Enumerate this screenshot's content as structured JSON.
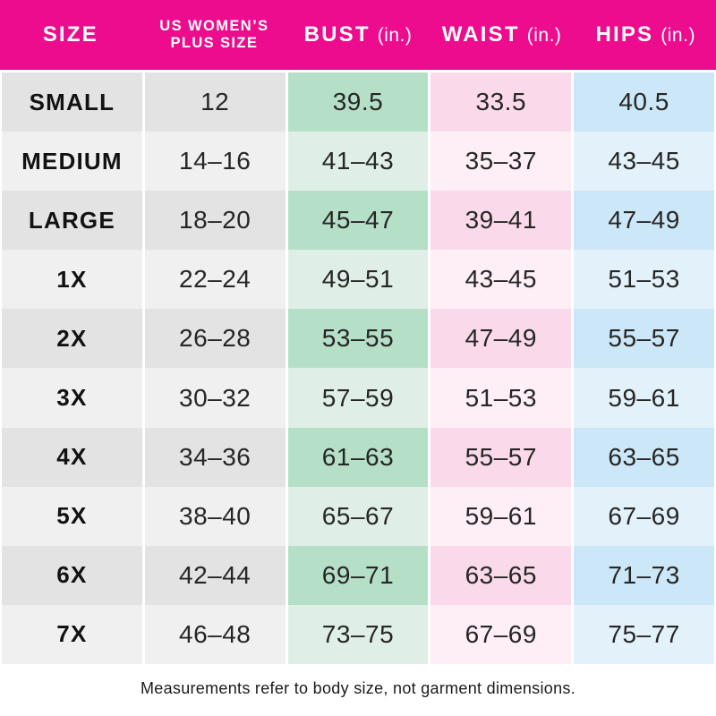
{
  "colors": {
    "header-bg": "#EC0C8D",
    "header-text": "#FFFFFF",
    "gray-dark": "#E3E3E4",
    "gray-light": "#F0F0F1",
    "mint-dark": "#B5DFC6",
    "mint-light": "#DFEFE7",
    "pink-dark": "#FADAEA",
    "pink-light": "#FDEFF5",
    "blue-dark": "#CCE7F7",
    "blue-light": "#E3F1FB"
  },
  "header": {
    "columns": [
      {
        "label": "SIZE",
        "unit": ""
      },
      {
        "label": "US WOMEN’S\nPLUS SIZE",
        "unit": ""
      },
      {
        "label": "BUST",
        "unit": "(in.)"
      },
      {
        "label": "WAIST",
        "unit": "(in.)"
      },
      {
        "label": "HIPS",
        "unit": "(in.)"
      }
    ]
  },
  "rows": [
    {
      "size": "SMALL",
      "plus": "12",
      "bust": "39.5",
      "waist": "33.5",
      "hips": "40.5"
    },
    {
      "size": "MEDIUM",
      "plus": "14–16",
      "bust": "41–43",
      "waist": "35–37",
      "hips": "43–45"
    },
    {
      "size": "LARGE",
      "plus": "18–20",
      "bust": "45–47",
      "waist": "39–41",
      "hips": "47–49"
    },
    {
      "size": "1X",
      "plus": "22–24",
      "bust": "49–51",
      "waist": "43–45",
      "hips": "51–53"
    },
    {
      "size": "2X",
      "plus": "26–28",
      "bust": "53–55",
      "waist": "47–49",
      "hips": "55–57"
    },
    {
      "size": "3X",
      "plus": "30–32",
      "bust": "57–59",
      "waist": "51–53",
      "hips": "59–61"
    },
    {
      "size": "4X",
      "plus": "34–36",
      "bust": "61–63",
      "waist": "55–57",
      "hips": "63–65"
    },
    {
      "size": "5X",
      "plus": "38–40",
      "bust": "65–67",
      "waist": "59–61",
      "hips": "67–69"
    },
    {
      "size": "6X",
      "plus": "42–44",
      "bust": "69–71",
      "waist": "63–65",
      "hips": "71–73"
    },
    {
      "size": "7X",
      "plus": "46–48",
      "bust": "73–75",
      "waist": "67–69",
      "hips": "75–77"
    }
  ],
  "footer": {
    "note": "Measurements refer to body size, not garment dimensions."
  },
  "chart_data": {
    "type": "table",
    "title": "Women's plus size chart",
    "columns": [
      "SIZE",
      "US WOMEN’S PLUS SIZE",
      "BUST (in.)",
      "WAIST (in.)",
      "HIPS (in.)"
    ],
    "rows": [
      [
        "SMALL",
        "12",
        "39.5",
        "33.5",
        "40.5"
      ],
      [
        "MEDIUM",
        "14–16",
        "41–43",
        "35–37",
        "43–45"
      ],
      [
        "LARGE",
        "18–20",
        "45–47",
        "39–41",
        "47–49"
      ],
      [
        "1X",
        "22–24",
        "49–51",
        "43–45",
        "51–53"
      ],
      [
        "2X",
        "26–28",
        "53–55",
        "47–49",
        "55–57"
      ],
      [
        "3X",
        "30–32",
        "57–59",
        "51–53",
        "59–61"
      ],
      [
        "4X",
        "34–36",
        "61–63",
        "55–57",
        "63–65"
      ],
      [
        "5X",
        "38–40",
        "65–67",
        "59–61",
        "67–69"
      ],
      [
        "6X",
        "42–44",
        "69–71",
        "63–65",
        "71–73"
      ],
      [
        "7X",
        "46–48",
        "73–75",
        "67–69",
        "75–77"
      ]
    ],
    "annotations": [
      "Measurements refer to body size, not garment dimensions."
    ],
    "layout": {
      "header_bg": "#EC0C8D",
      "row_striping": "dark/light alternating per row",
      "column_tints": [
        "gray",
        "gray",
        "mint",
        "pink",
        "blue"
      ]
    }
  }
}
